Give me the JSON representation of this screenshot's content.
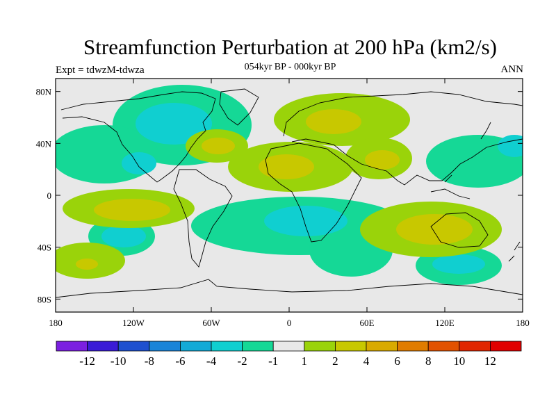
{
  "header": {
    "title": "Streamfunction Perturbation at 200 hPa (km2/s)",
    "left_label": "Expt = tdwzM-tdwza",
    "center_label": "054kyr BP - 000kyr BP",
    "right_label": "ANN"
  },
  "map": {
    "projection": "cylindrical-equidistant",
    "lon_range": [
      -180,
      180
    ],
    "lat_range": [
      -90,
      90
    ],
    "x_ticks": [
      {
        "value": -180,
        "label": "180"
      },
      {
        "value": -120,
        "label": "120W"
      },
      {
        "value": -60,
        "label": "60W"
      },
      {
        "value": 0,
        "label": "0"
      },
      {
        "value": 60,
        "label": "60E"
      },
      {
        "value": 120,
        "label": "120E"
      },
      {
        "value": 180,
        "label": "180"
      }
    ],
    "y_ticks": [
      {
        "value": 80,
        "label": "80N"
      },
      {
        "value": 40,
        "label": "40N"
      },
      {
        "value": 0,
        "label": "0"
      },
      {
        "value": -40,
        "label": "40S"
      },
      {
        "value": -80,
        "label": "80S"
      }
    ],
    "background_color": "#e8e8e8",
    "coastline_color": "#000000"
  },
  "colorbar": {
    "labels": [
      "-12",
      "-10",
      "-8",
      "-6",
      "-4",
      "-2",
      "-1",
      "1",
      "2",
      "4",
      "6",
      "8",
      "10",
      "12"
    ],
    "colors": [
      "#7b1fe0",
      "#3a1bd6",
      "#1e50cf",
      "#1a84d8",
      "#13aad6",
      "#10cfd0",
      "#15d896",
      "#e8e8e8",
      "#9ad30a",
      "#c8c800",
      "#d9aa00",
      "#e07c00",
      "#e25200",
      "#e02600",
      "#e00000"
    ]
  }
}
